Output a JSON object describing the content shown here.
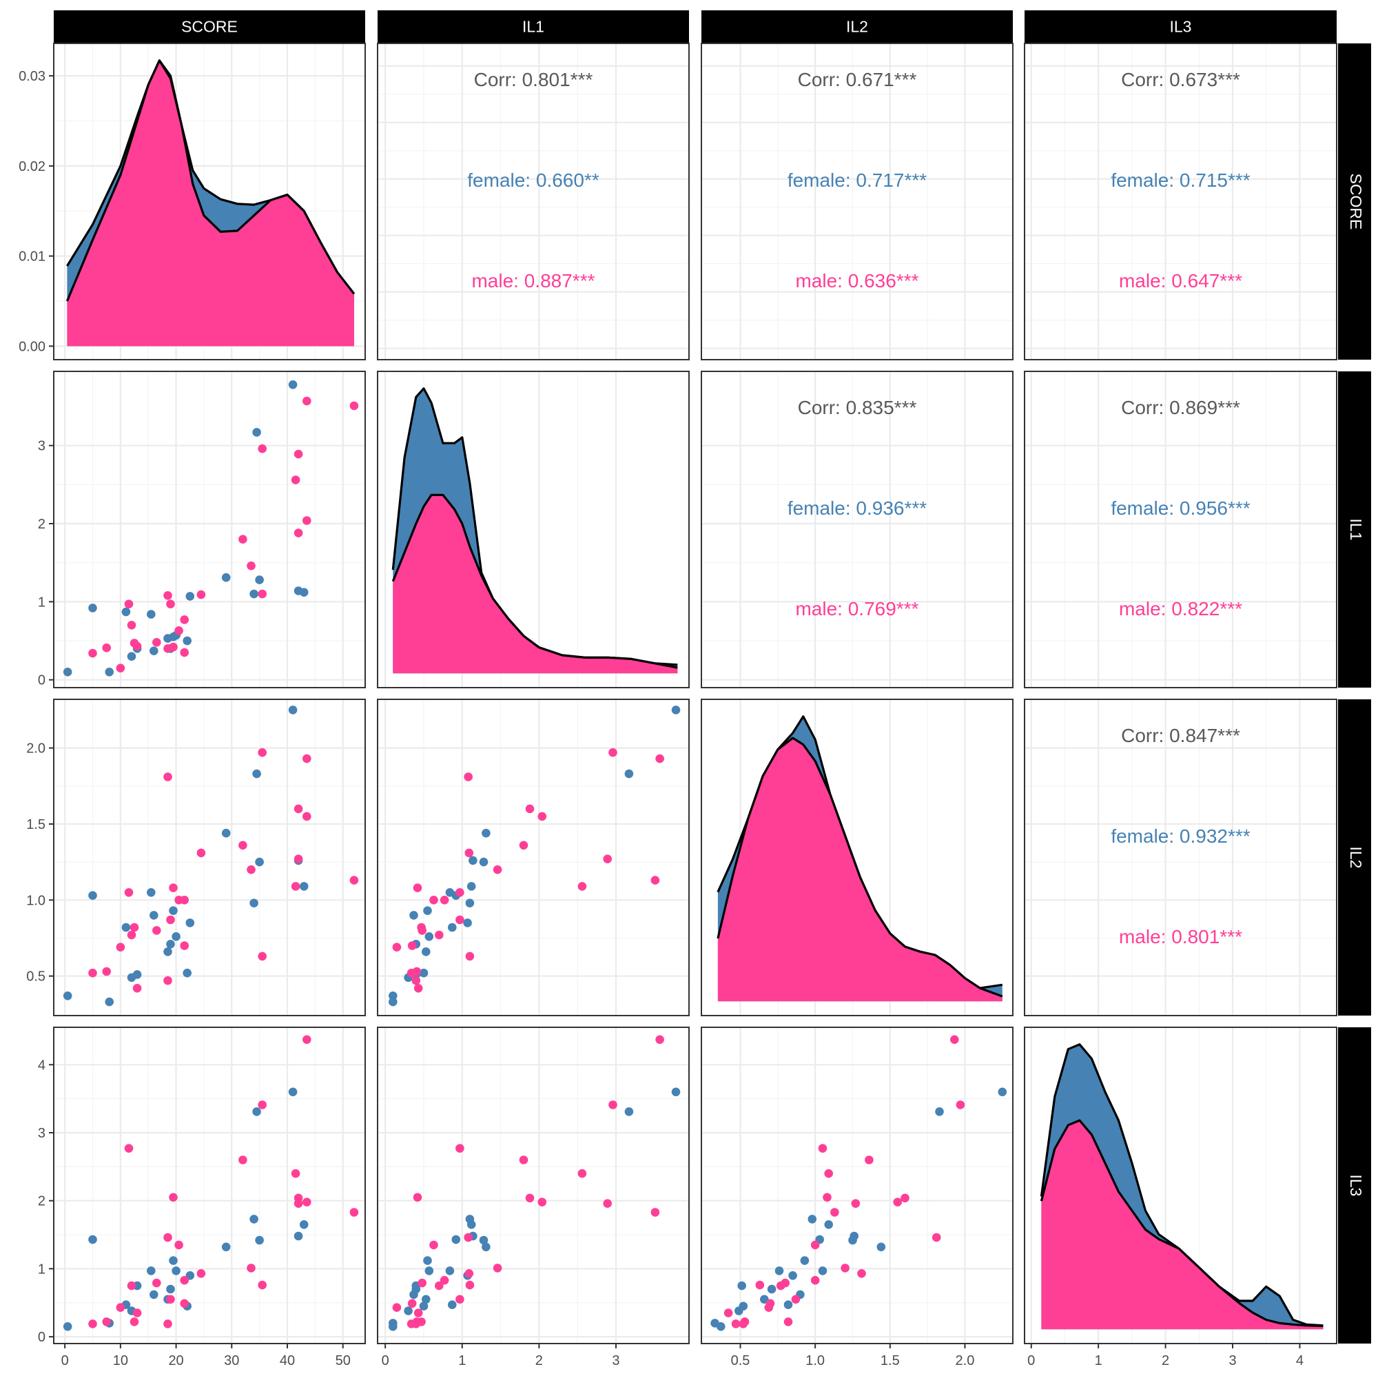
{
  "chart_data": {
    "type": "scatter-matrix",
    "variables": [
      "SCORE",
      "IL1",
      "IL2",
      "IL3"
    ],
    "colors": {
      "female": "#4682B4",
      "male": "#FF3E96",
      "overall": "#595959",
      "grid_major": "#EBEBEB",
      "grid_minor": "#F4F4F4",
      "strip": "#000000",
      "strip_text": "#FFFFFF"
    },
    "axes": {
      "SCORE": {
        "range": [
          -2,
          54
        ],
        "ticks": [
          0,
          10,
          20,
          30,
          40,
          50
        ],
        "tick_labels": [
          "0",
          "10",
          "20",
          "30",
          "40",
          "50"
        ]
      },
      "IL1": {
        "range": [
          -0.1,
          3.95
        ],
        "ticks": [
          0,
          1,
          2,
          3
        ],
        "tick_labels": [
          "0",
          "1",
          "2",
          "3"
        ]
      },
      "IL2": {
        "range": [
          0.24,
          2.32
        ],
        "ticks": [
          0.5,
          1.0,
          1.5,
          2.0
        ],
        "tick_labels": [
          "0.5",
          "1.0",
          "1.5",
          "2.0"
        ]
      },
      "IL3": {
        "range": [
          -0.1,
          4.55
        ],
        "ticks": [
          0,
          1,
          2,
          3,
          4
        ],
        "tick_labels": [
          "0",
          "1",
          "2",
          "3",
          "4"
        ]
      }
    },
    "diag_y": {
      "SCORE": {
        "range": [
          -0.0015,
          0.0336
        ],
        "ticks": [
          0,
          0.01,
          0.02,
          0.03
        ],
        "tick_labels": [
          "0.00",
          "0.01",
          "0.02",
          "0.03"
        ]
      }
    },
    "correlations": [
      {
        "x": "IL1",
        "y": "SCORE",
        "overall": "Corr: 0.801***",
        "female": "female: 0.660**",
        "male": "male: 0.887***"
      },
      {
        "x": "IL2",
        "y": "SCORE",
        "overall": "Corr: 0.671***",
        "female": "female: 0.717***",
        "male": "male: 0.636***"
      },
      {
        "x": "IL3",
        "y": "SCORE",
        "overall": "Corr: 0.673***",
        "female": "female: 0.715***",
        "male": "male: 0.647***"
      },
      {
        "x": "IL2",
        "y": "IL1",
        "overall": "Corr: 0.835***",
        "female": "female: 0.936***",
        "male": "male: 0.769***"
      },
      {
        "x": "IL3",
        "y": "IL1",
        "overall": "Corr: 0.869***",
        "female": "female: 0.956***",
        "male": "male: 0.822***"
      },
      {
        "x": "IL3",
        "y": "IL2",
        "overall": "Corr: 0.847***",
        "female": "female: 0.932***",
        "male": "male: 0.801***"
      }
    ],
    "densities": {
      "SCORE": {
        "x": [
          0.4,
          5,
          10,
          13,
          15,
          17,
          19,
          21,
          23,
          25,
          28,
          31,
          34,
          37,
          40,
          43,
          46,
          49,
          52
        ],
        "female_top": [
          0.0089,
          0.0135,
          0.02,
          0.0255,
          0.029,
          0.0315,
          0.03,
          0.0245,
          0.0195,
          0.0175,
          0.0163,
          0.0158,
          0.0157,
          0.0155,
          0.015,
          0.0128,
          0.0098,
          0.0068,
          0.003
        ],
        "male_top": [
          0.005,
          0.0118,
          0.019,
          0.025,
          0.029,
          0.0317,
          0.0297,
          0.0245,
          0.018,
          0.0145,
          0.0127,
          0.0128,
          0.0145,
          0.0162,
          0.0168,
          0.015,
          0.0115,
          0.0082,
          0.0058
        ]
      },
      "IL1": {
        "x": [
          0.1,
          0.25,
          0.4,
          0.5,
          0.6,
          0.75,
          0.9,
          1.0,
          1.1,
          1.25,
          1.4,
          1.6,
          1.8,
          2.0,
          2.3,
          2.6,
          2.9,
          3.2,
          3.5,
          3.8
        ],
        "female_top": [
          0.36,
          0.75,
          0.96,
          0.99,
          0.94,
          0.8,
          0.8,
          0.82,
          0.66,
          0.35,
          0.25,
          0.17,
          0.11,
          0.07,
          0.04,
          0.035,
          0.035,
          0.03,
          0.025,
          0.03
        ],
        "male_top": [
          0.32,
          0.42,
          0.52,
          0.58,
          0.62,
          0.62,
          0.57,
          0.52,
          0.44,
          0.34,
          0.26,
          0.19,
          0.13,
          0.09,
          0.063,
          0.055,
          0.055,
          0.05,
          0.035,
          0.02
        ]
      },
      "IL2": {
        "x": [
          0.35,
          0.45,
          0.55,
          0.65,
          0.75,
          0.85,
          0.92,
          1.0,
          1.1,
          1.2,
          1.3,
          1.4,
          1.5,
          1.6,
          1.7,
          1.8,
          1.9,
          2.0,
          2.1,
          2.25
        ],
        "female_top": [
          0.66,
          0.86,
          0.98,
          1.1,
          1.35,
          1.62,
          1.72,
          1.58,
          1.25,
          0.95,
          0.68,
          0.47,
          0.33,
          0.26,
          0.22,
          0.21,
          0.17,
          0.1,
          0.06,
          0.1
        ],
        "male_top": [
          0.38,
          0.76,
          1.1,
          1.36,
          1.52,
          1.59,
          1.55,
          1.45,
          1.25,
          1.0,
          0.75,
          0.55,
          0.41,
          0.33,
          0.3,
          0.28,
          0.22,
          0.14,
          0.08,
          0.03
        ]
      },
      "IL3": {
        "x": [
          0.15,
          0.35,
          0.55,
          0.72,
          0.9,
          1.1,
          1.3,
          1.5,
          1.7,
          1.9,
          2.2,
          2.5,
          2.8,
          3.1,
          3.3,
          3.5,
          3.7,
          3.9,
          4.1,
          4.35
        ],
        "female_top": [
          0.28,
          0.49,
          0.59,
          0.6,
          0.57,
          0.5,
          0.44,
          0.35,
          0.25,
          0.2,
          0.17,
          0.13,
          0.09,
          0.06,
          0.06,
          0.09,
          0.07,
          0.02,
          0.01,
          0.008
        ],
        "male_top": [
          0.27,
          0.38,
          0.43,
          0.44,
          0.41,
          0.35,
          0.29,
          0.25,
          0.21,
          0.19,
          0.17,
          0.13,
          0.09,
          0.055,
          0.035,
          0.02,
          0.013,
          0.01,
          0.008,
          0.007
        ]
      }
    },
    "points": {
      "female": [
        [
          0.5,
          0.1,
          0.37,
          0.15
        ],
        [
          5,
          0.92,
          1.03,
          1.43
        ],
        [
          8,
          0.1,
          0.33,
          0.2
        ],
        [
          11,
          0.87,
          0.82,
          0.47
        ],
        [
          12,
          0.3,
          0.49,
          0.38
        ],
        [
          13,
          0.4,
          0.51,
          0.75
        ],
        [
          15.5,
          0.84,
          1.05,
          0.97
        ],
        [
          16,
          0.37,
          0.9,
          0.62
        ],
        [
          18.5,
          0.53,
          0.66,
          0.55
        ],
        [
          19,
          0.4,
          0.71,
          0.7
        ],
        [
          19.5,
          0.55,
          0.93,
          1.12
        ],
        [
          20,
          0.57,
          0.76,
          0.97
        ],
        [
          22,
          0.5,
          0.52,
          0.45
        ],
        [
          22.5,
          1.07,
          0.85,
          0.9
        ],
        [
          29,
          1.31,
          1.44,
          1.32
        ],
        [
          34,
          1.1,
          0.98,
          1.73
        ],
        [
          34.5,
          3.17,
          1.83,
          3.31
        ],
        [
          35,
          1.28,
          1.25,
          1.42
        ],
        [
          41,
          3.78,
          2.25,
          3.6
        ],
        [
          42,
          1.14,
          1.26,
          1.48
        ],
        [
          43,
          1.12,
          1.09,
          1.65
        ]
      ],
      "male": [
        [
          5,
          0.34,
          0.52,
          0.19
        ],
        [
          7.5,
          0.41,
          0.53,
          0.22
        ],
        [
          10,
          0.15,
          0.69,
          0.43
        ],
        [
          11.5,
          0.97,
          1.05,
          2.77
        ],
        [
          12,
          0.7,
          0.77,
          0.75
        ],
        [
          12.5,
          0.47,
          0.82,
          0.22
        ],
        [
          13,
          0.43,
          0.42,
          0.35
        ],
        [
          16.5,
          0.48,
          0.8,
          0.79
        ],
        [
          18.5,
          1.08,
          1.81,
          1.46
        ],
        [
          18.5,
          0.4,
          0.47,
          0.19
        ],
        [
          19,
          0.97,
          0.87,
          0.55
        ],
        [
          19.5,
          0.42,
          1.08,
          2.05
        ],
        [
          20.5,
          0.63,
          1.0,
          1.35
        ],
        [
          21.5,
          0.77,
          1.0,
          0.83
        ],
        [
          21.5,
          0.35,
          0.7,
          0.49
        ],
        [
          24.5,
          1.09,
          1.31,
          0.93
        ],
        [
          32,
          1.8,
          1.36,
          2.6
        ],
        [
          33.5,
          1.46,
          1.2,
          1.01
        ],
        [
          35.5,
          2.96,
          1.97,
          3.41
        ],
        [
          35.5,
          1.1,
          0.63,
          0.76
        ],
        [
          41.5,
          2.56,
          1.09,
          2.4
        ],
        [
          42,
          1.88,
          1.6,
          2.04
        ],
        [
          42,
          2.89,
          1.27,
          1.96
        ],
        [
          43.5,
          2.04,
          1.55,
          1.98
        ],
        [
          43.5,
          3.57,
          1.93,
          4.37
        ],
        [
          52,
          3.51,
          1.13,
          1.83
        ]
      ]
    }
  }
}
